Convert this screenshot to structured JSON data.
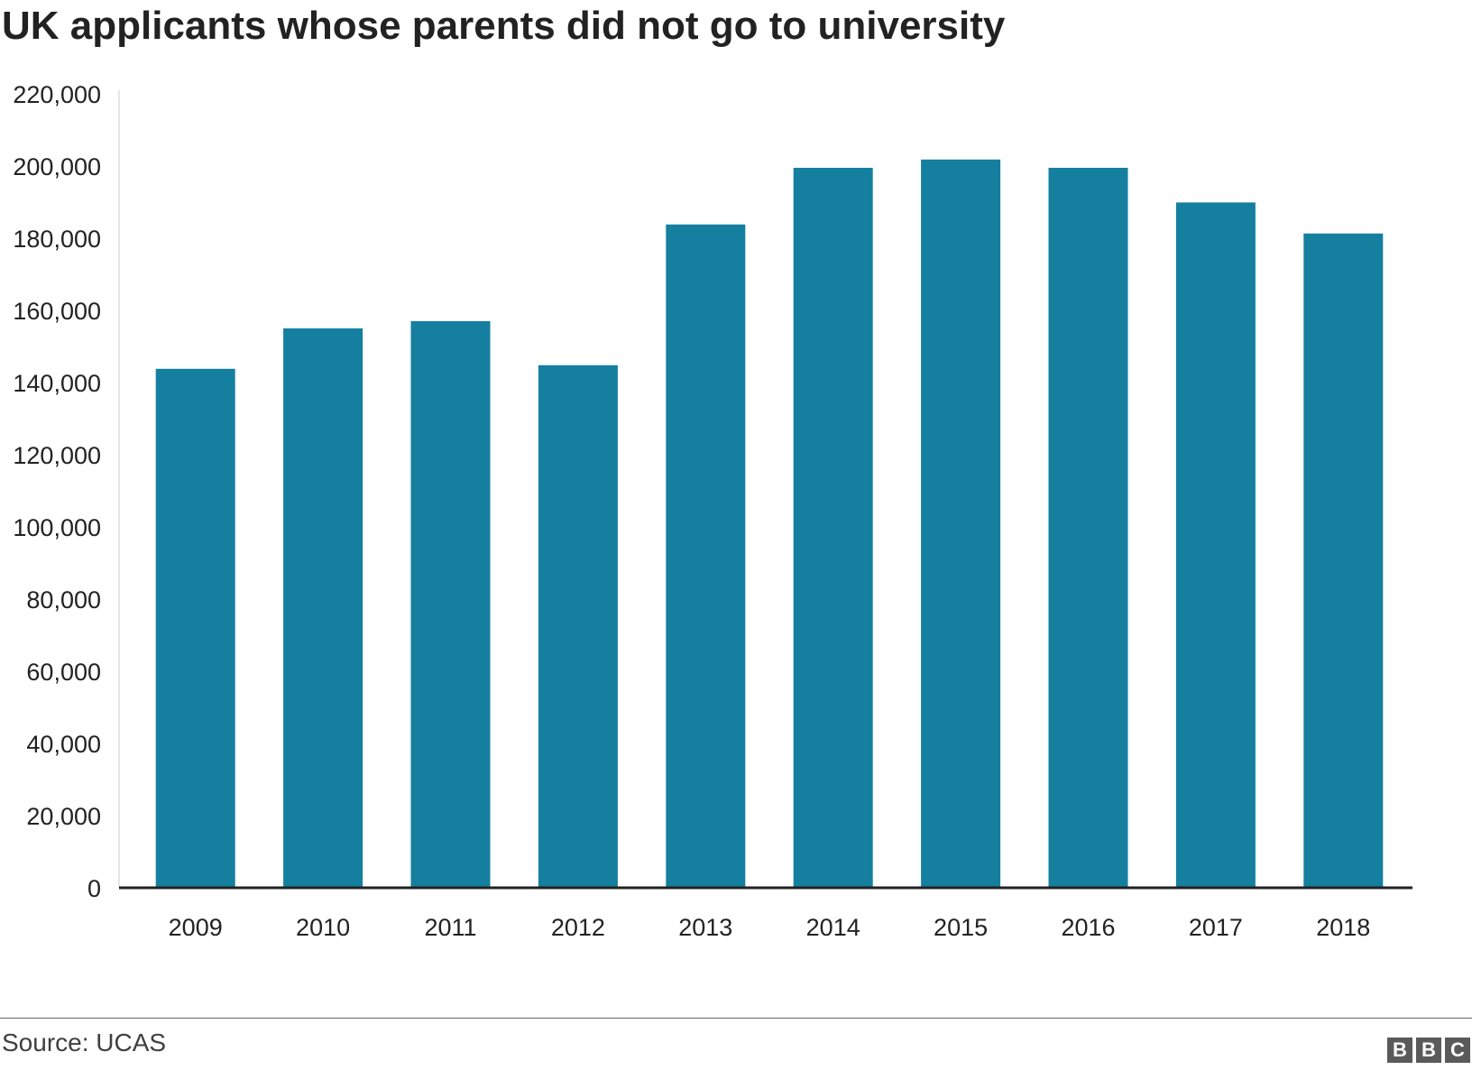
{
  "chart_data": {
    "type": "bar",
    "title": "UK applicants whose parents did not go to university",
    "categories": [
      "2009",
      "2010",
      "2011",
      "2012",
      "2013",
      "2014",
      "2015",
      "2016",
      "2017",
      "2018"
    ],
    "values": [
      143800,
      155000,
      157000,
      144800,
      183800,
      199500,
      201800,
      199500,
      189900,
      181300
    ],
    "ylim": [
      0,
      220000
    ],
    "yticks": [
      "0",
      "20,000",
      "40,000",
      "60,000",
      "80,000",
      "100,000",
      "120,000",
      "140,000",
      "160,000",
      "180,000",
      "200,000",
      "220,000"
    ],
    "xlabel": "",
    "ylabel": "",
    "grid": false,
    "bar_color": "#157fa0",
    "axis_color": "#222222"
  },
  "footer": {
    "source": "Source: UCAS",
    "logo": [
      "B",
      "B",
      "C"
    ]
  }
}
